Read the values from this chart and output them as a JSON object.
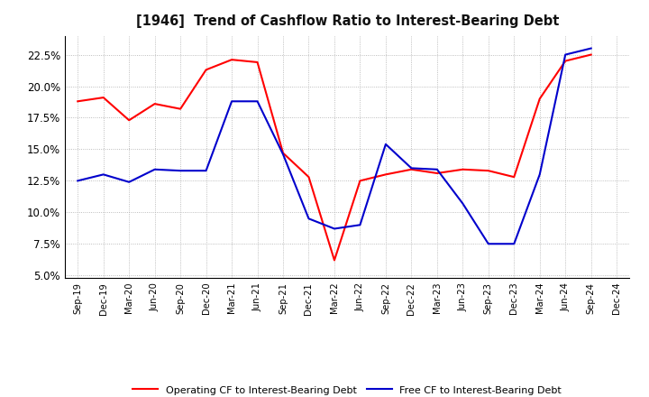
{
  "title": "[1946]  Trend of Cashflow Ratio to Interest-Bearing Debt",
  "x_labels": [
    "Sep-19",
    "Dec-19",
    "Mar-20",
    "Jun-20",
    "Sep-20",
    "Dec-20",
    "Mar-21",
    "Jun-21",
    "Sep-21",
    "Dec-21",
    "Mar-22",
    "Jun-22",
    "Sep-22",
    "Dec-22",
    "Mar-23",
    "Jun-23",
    "Sep-23",
    "Dec-23",
    "Mar-24",
    "Jun-24",
    "Sep-24",
    "Dec-24"
  ],
  "operating_cf": [
    18.8,
    19.1,
    17.3,
    18.6,
    18.2,
    21.3,
    22.1,
    21.9,
    14.7,
    12.8,
    6.2,
    12.5,
    13.0,
    13.4,
    13.1,
    13.4,
    13.3,
    12.8,
    19.0,
    22.0,
    22.5,
    null
  ],
  "free_cf": [
    12.5,
    13.0,
    12.4,
    13.4,
    13.3,
    13.3,
    18.8,
    18.8,
    14.6,
    9.5,
    8.7,
    9.0,
    15.4,
    13.5,
    13.4,
    10.7,
    7.5,
    7.5,
    13.0,
    22.5,
    23.0,
    null
  ],
  "yticks": [
    5.0,
    7.5,
    10.0,
    12.5,
    15.0,
    17.5,
    20.0,
    22.5
  ],
  "ymin": 5.0,
  "ymax": 24.0,
  "operating_color": "#FF0000",
  "free_color": "#0000CC",
  "background_color": "#FFFFFF",
  "grid_color": "#AAAAAA",
  "legend_operating": "Operating CF to Interest-Bearing Debt",
  "legend_free": "Free CF to Interest-Bearing Debt"
}
